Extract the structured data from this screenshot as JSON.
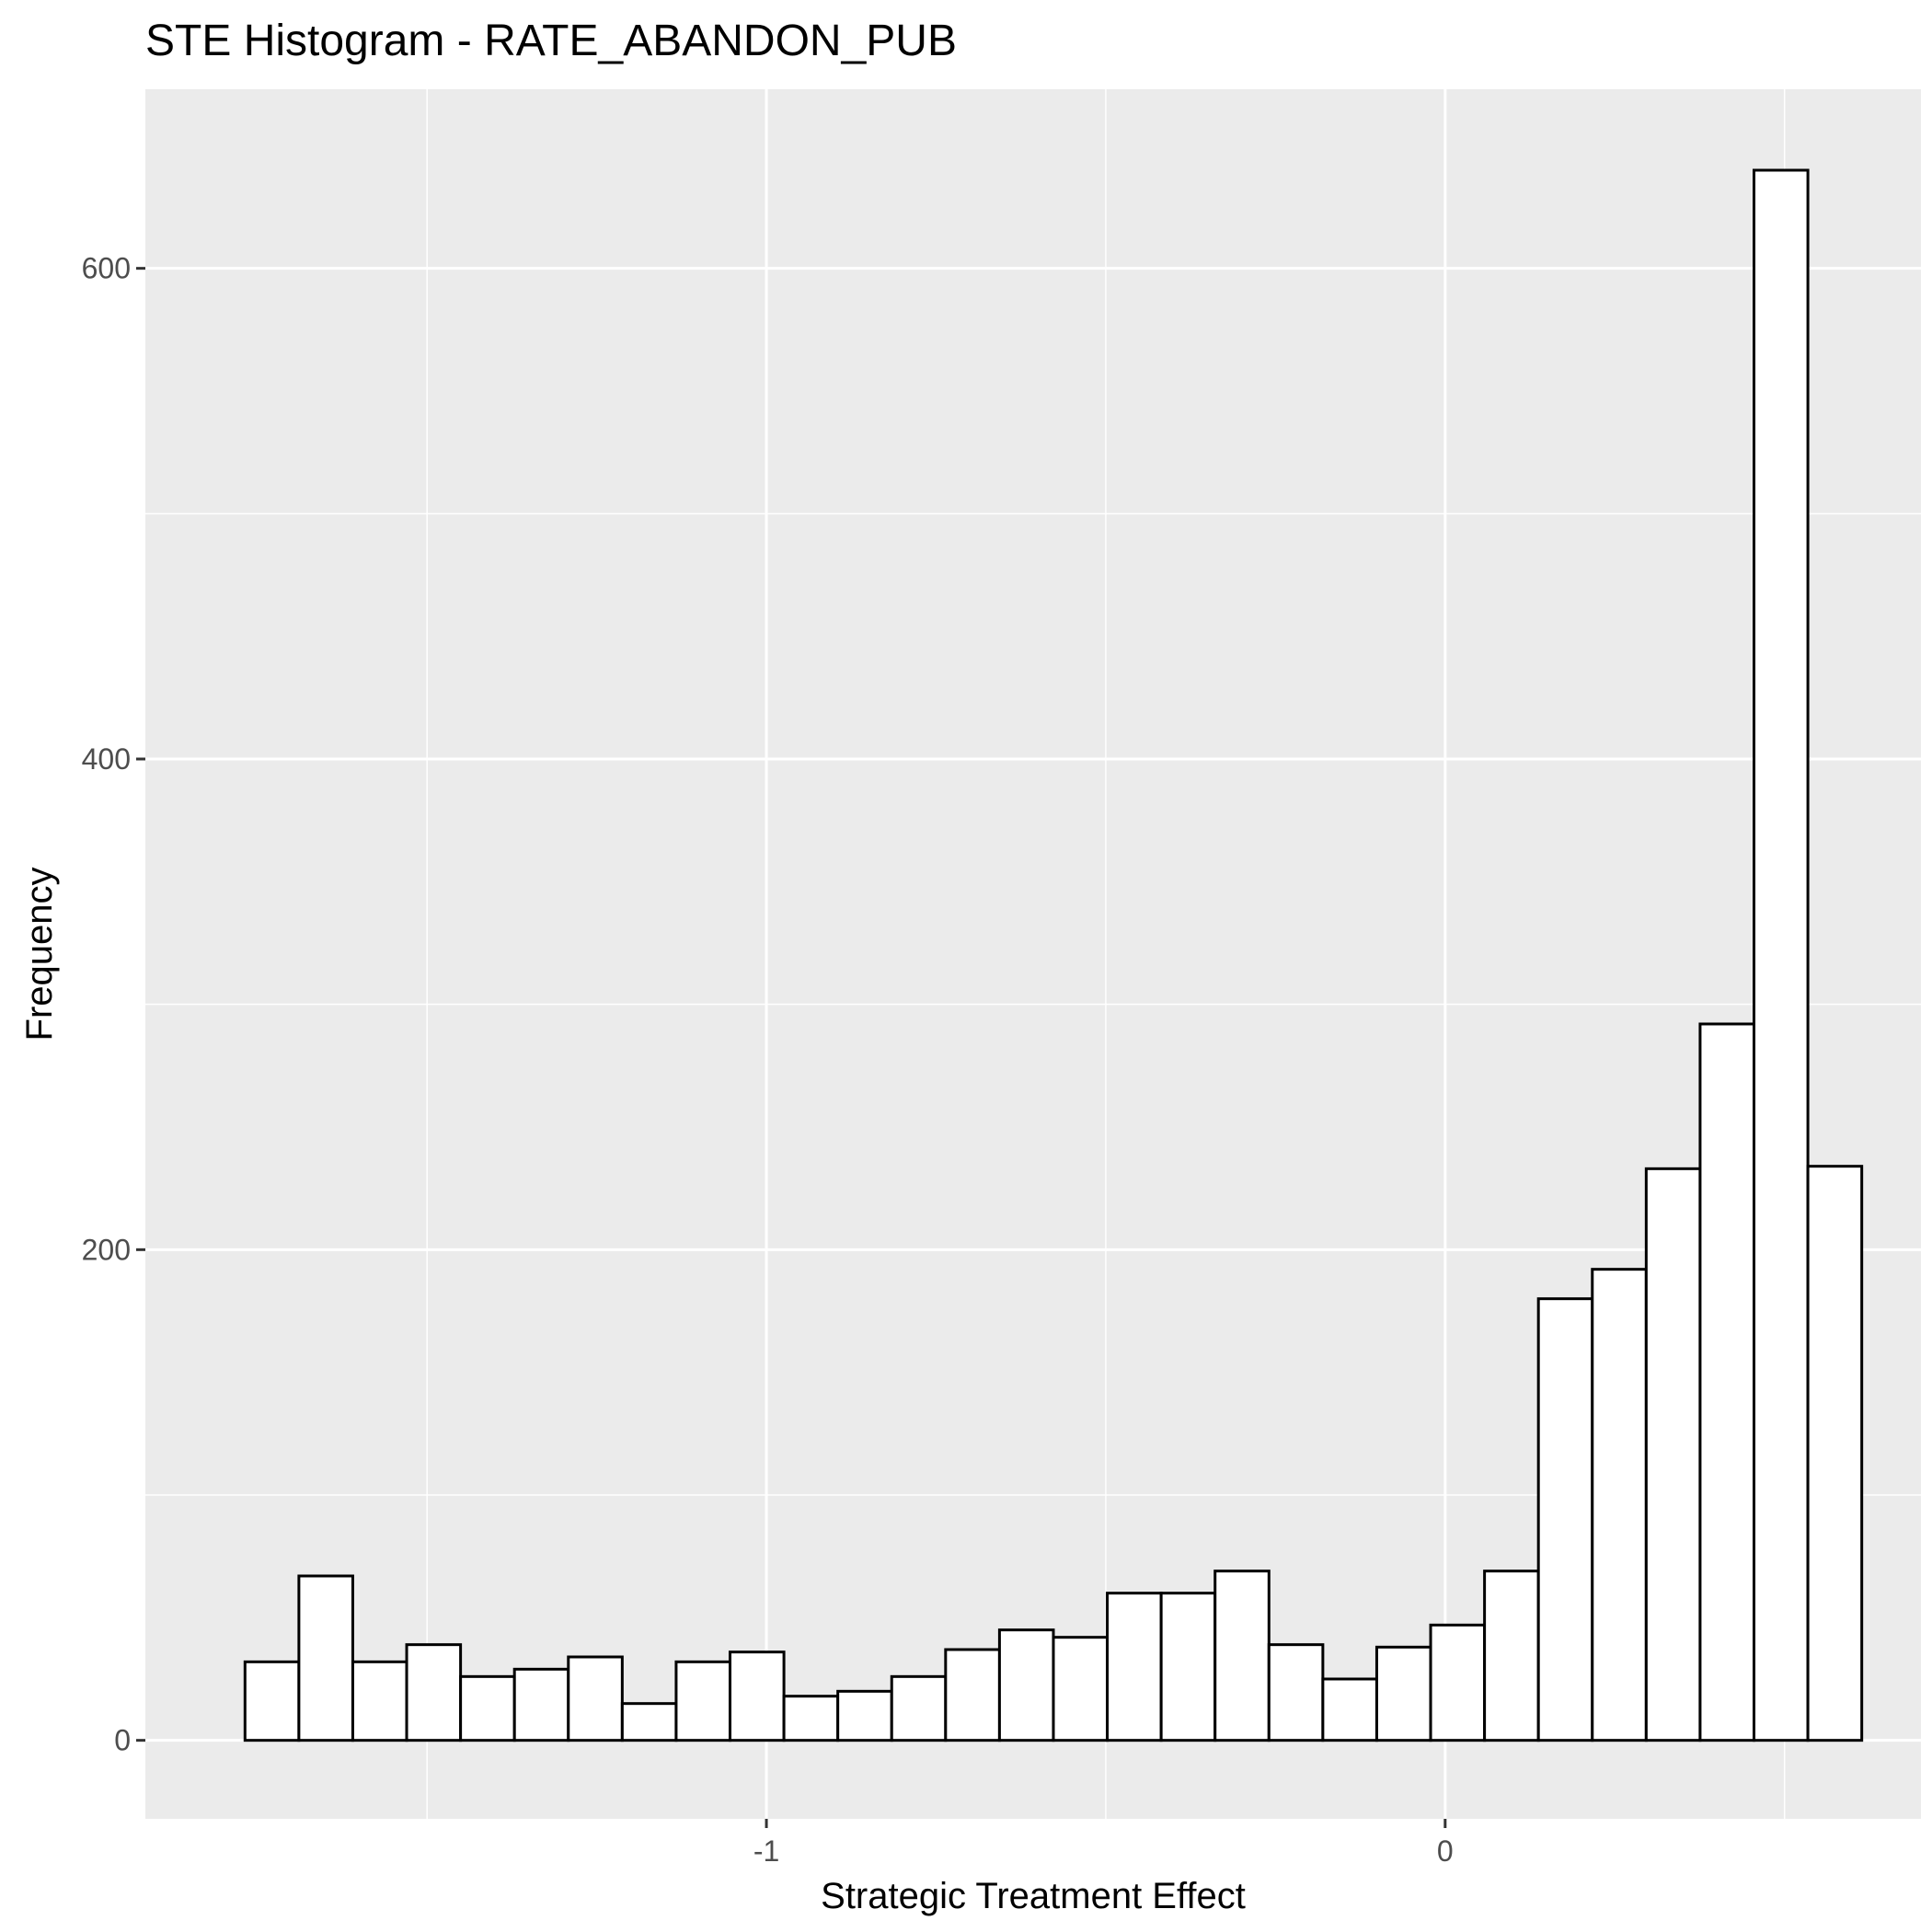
{
  "chart_data": {
    "type": "bar",
    "title": "STE Histogram -  RATE_ABANDON_PUB",
    "xlabel": "Strategic Treatment Effect",
    "ylabel": "Frequency",
    "bin_width": 0.0794,
    "x": [
      -1.7285,
      -1.6491,
      -1.5697,
      -1.4903,
      -1.4109,
      -1.3315,
      -1.2521,
      -1.1727,
      -1.0933,
      -1.0139,
      -0.9345,
      -0.8551,
      -0.7757,
      -0.6963,
      -0.6169,
      -0.5375,
      -0.4581,
      -0.3787,
      -0.2993,
      -0.2199,
      -0.1405,
      -0.0611,
      0.0183,
      0.0977,
      0.1771,
      0.2565,
      0.3359,
      0.4153,
      0.4947,
      0.5741
    ],
    "values": [
      32,
      67,
      32,
      39,
      26,
      29,
      34,
      15,
      32,
      36,
      18,
      20,
      26,
      37,
      45,
      42,
      60,
      60,
      69,
      39,
      25,
      38,
      47,
      69,
      180,
      192,
      233,
      292,
      640,
      234
    ],
    "xlim": [
      -1.915,
      0.701
    ],
    "ylim": [
      -32,
      673
    ],
    "x_ticks": [
      -1,
      0
    ],
    "x_tick_labels": [
      "-1",
      "0"
    ],
    "x_minor_ticks": [
      -1.5,
      -0.5,
      0.5
    ],
    "y_ticks": [
      0,
      200,
      400,
      600
    ],
    "y_tick_labels": [
      "0",
      "200",
      "400",
      "600"
    ],
    "y_minor_ticks": [
      100,
      300,
      500
    ],
    "grid": true,
    "colors": {
      "panel_background": "#EBEBEB",
      "grid_line": "#FFFFFF",
      "bar_fill": "#FFFFFF",
      "bar_outline": "#000000",
      "tick_text": "#4D4D4D",
      "tick_mark": "#333333"
    }
  }
}
